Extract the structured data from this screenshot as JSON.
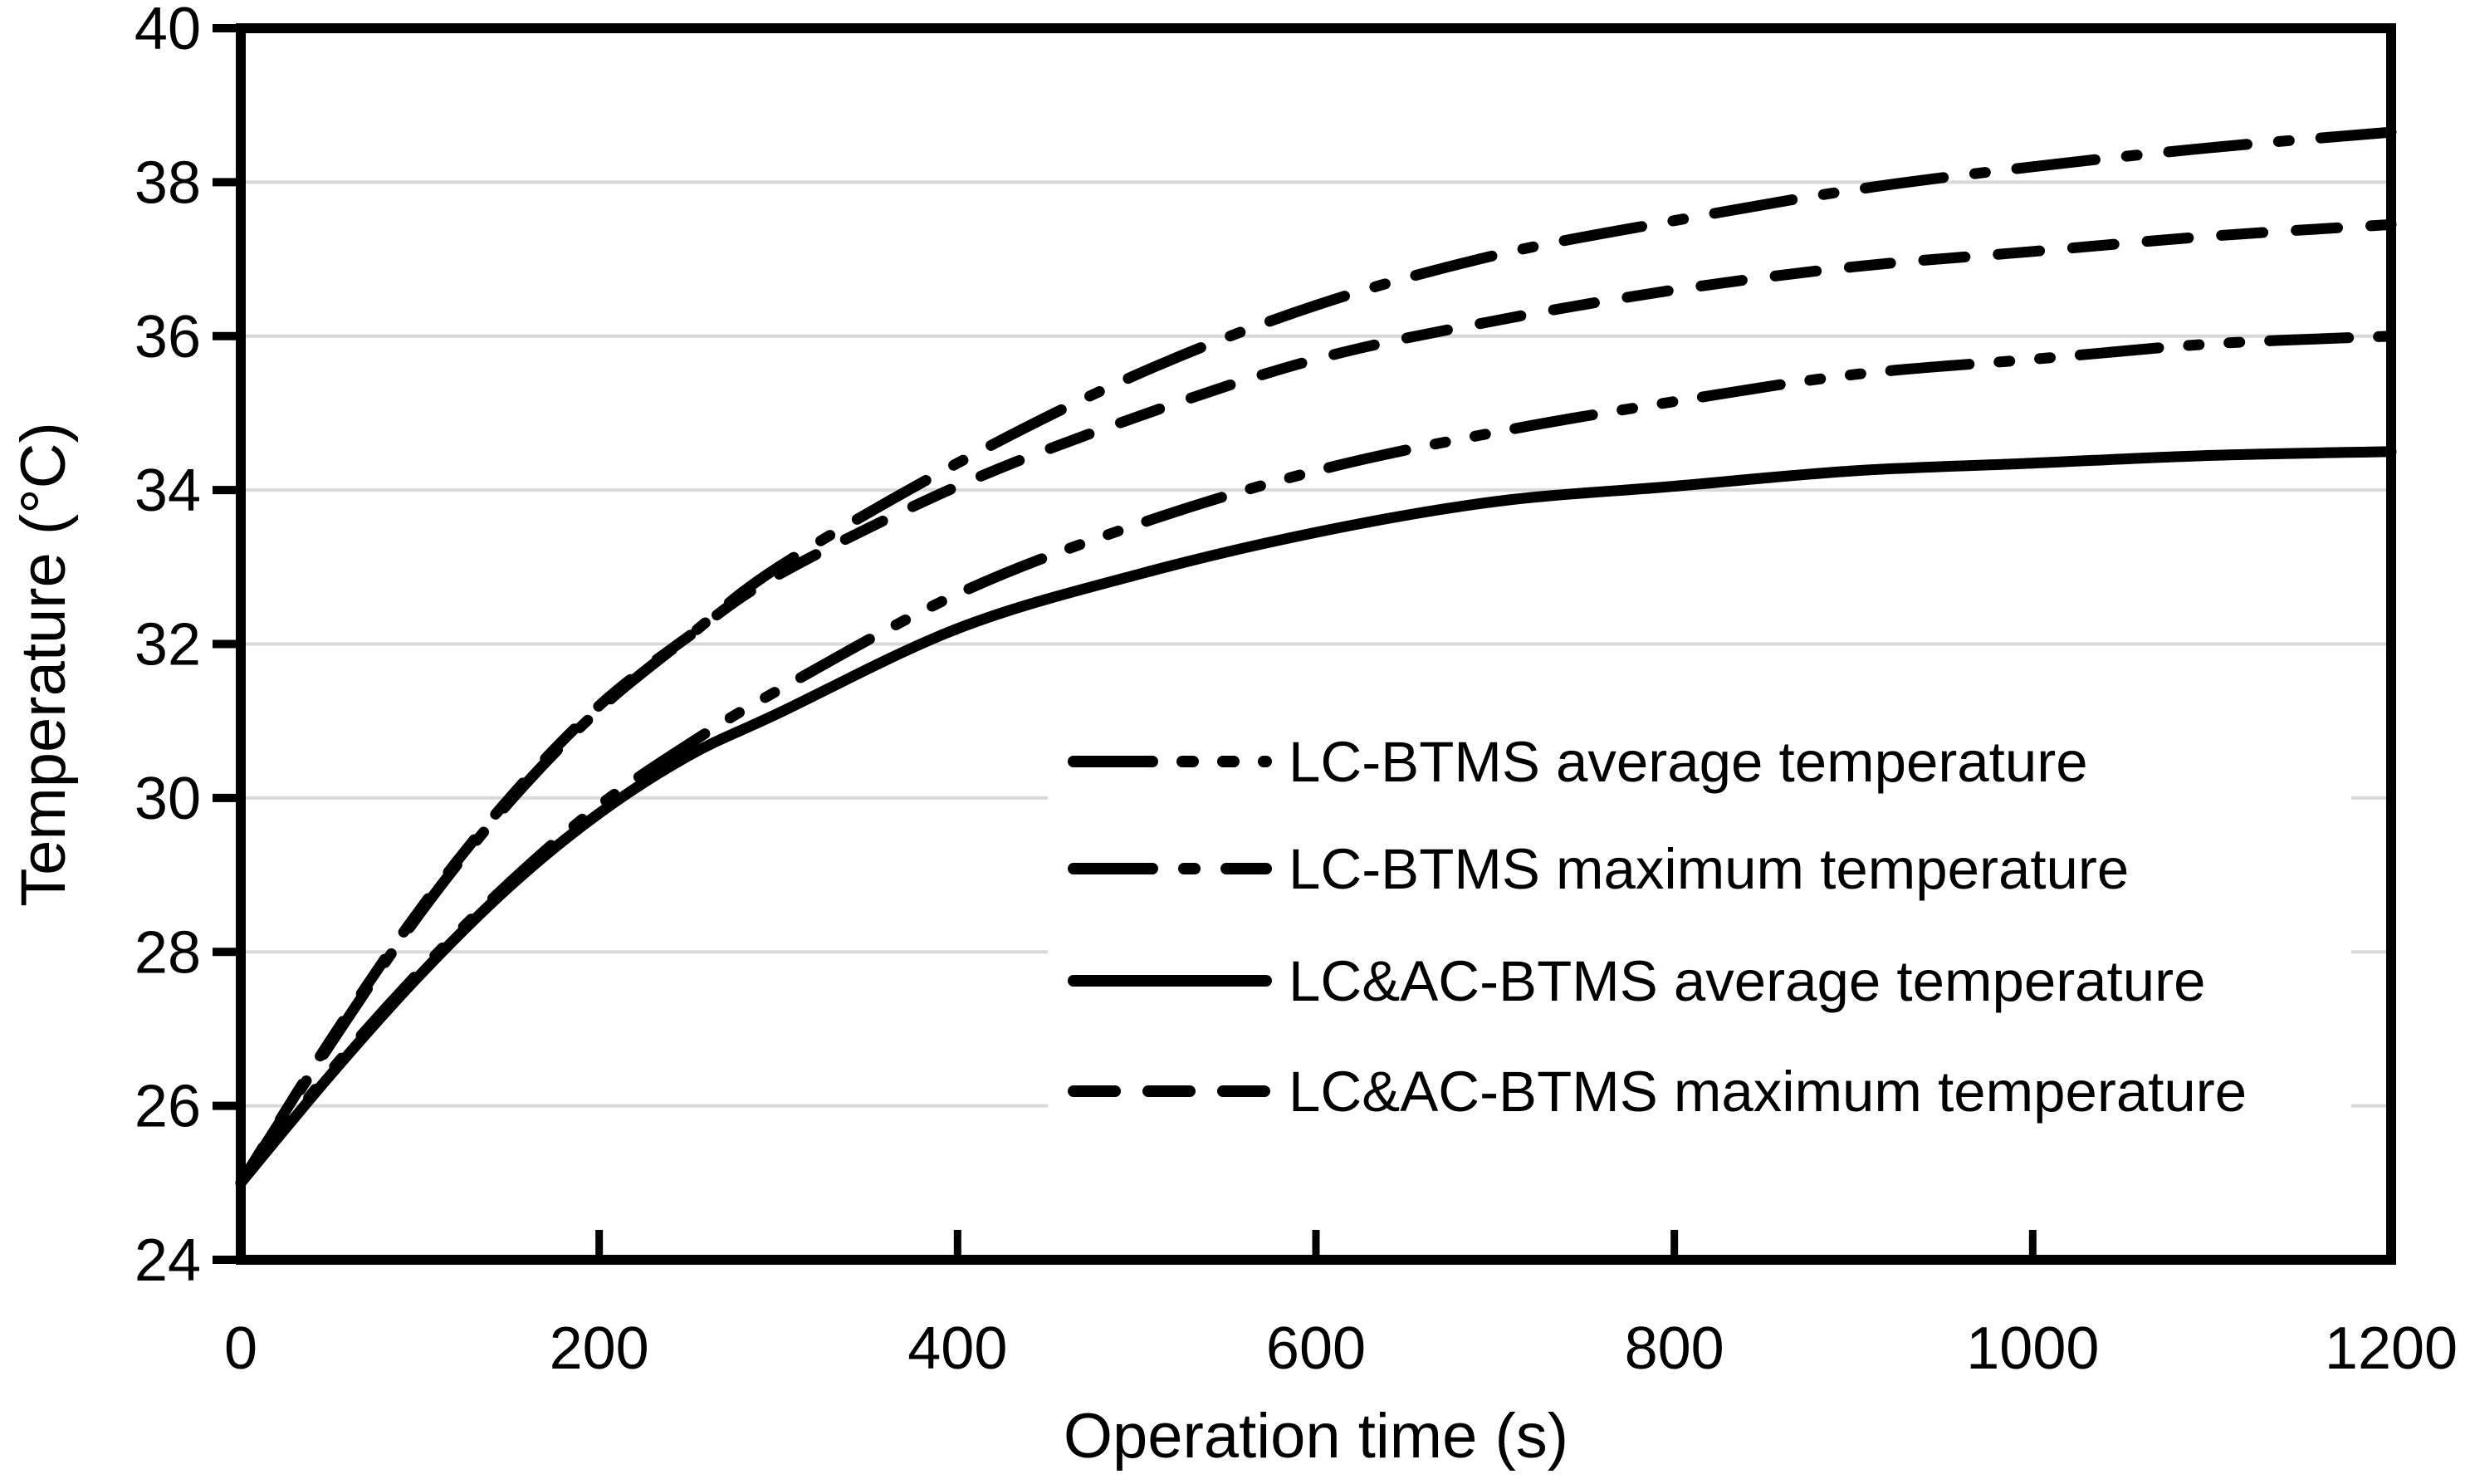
{
  "chart_data": {
    "type": "line",
    "title": "",
    "xlabel": "Operation time (s)",
    "ylabel": "Temperature (°C)",
    "xlim": [
      0,
      1200
    ],
    "ylim": [
      24,
      40
    ],
    "x_ticks": [
      0,
      200,
      400,
      600,
      800,
      1000,
      1200
    ],
    "y_ticks": [
      24,
      26,
      28,
      30,
      32,
      34,
      36,
      38,
      40
    ],
    "grid": "horizontal-only",
    "gridline_color": "#d9d9d9",
    "axis_color": "#000000",
    "line_color": "#000000",
    "background_color": "#ffffff",
    "legend_position": "inside-center-right",
    "x": [
      0,
      50,
      100,
      150,
      200,
      250,
      300,
      400,
      500,
      600,
      700,
      800,
      900,
      1000,
      1100,
      1200
    ],
    "series": [
      {
        "name": "LC-BTMS average temperature",
        "style": "dash-dot-dot",
        "color": "#000000",
        "values": [
          25.0,
          26.45,
          27.75,
          28.9,
          29.9,
          30.7,
          31.4,
          32.65,
          33.55,
          34.25,
          34.75,
          35.15,
          35.5,
          35.7,
          35.9,
          36.0
        ]
      },
      {
        "name": "LC-BTMS maximum temperature",
        "style": "dash-dot",
        "color": "#000000",
        "values": [
          25.0,
          26.8,
          28.5,
          29.95,
          31.15,
          32.1,
          33.0,
          34.35,
          35.5,
          36.4,
          37.05,
          37.5,
          37.9,
          38.2,
          38.45,
          38.65
        ]
      },
      {
        "name": "LC&AC-BTMS average temperature",
        "style": "solid",
        "color": "#000000",
        "values": [
          25.0,
          26.4,
          27.7,
          28.85,
          29.8,
          30.55,
          31.1,
          32.2,
          32.9,
          33.45,
          33.85,
          34.05,
          34.25,
          34.35,
          34.45,
          34.5
        ]
      },
      {
        "name": "LC&AC-BTMS maximum temperature",
        "style": "dashed",
        "color": "#000000",
        "values": [
          25.0,
          26.85,
          28.55,
          30.0,
          31.2,
          32.1,
          32.9,
          34.05,
          34.95,
          35.7,
          36.2,
          36.6,
          36.9,
          37.1,
          37.3,
          37.45
        ]
      }
    ]
  }
}
